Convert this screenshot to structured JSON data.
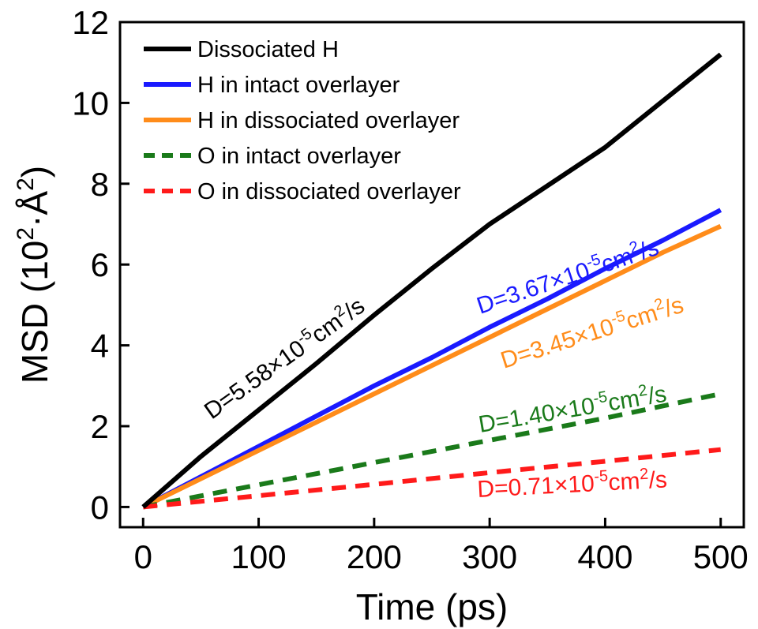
{
  "chart_data": {
    "type": "line",
    "xlabel": "Time (ps)",
    "ylabel": {
      "text": "MSD (10",
      "sup1": "2",
      "mid": "·Å",
      "sup2": "2",
      "end": ")"
    },
    "xlim": [
      -20,
      520
    ],
    "ylim": [
      -0.5,
      12
    ],
    "xticks": [
      0,
      100,
      200,
      300,
      400,
      500
    ],
    "yticks": [
      0,
      2,
      4,
      6,
      8,
      10,
      12
    ],
    "xtick_labels": [
      "0",
      "100",
      "200",
      "300",
      "400",
      "500"
    ],
    "ytick_labels": [
      "0",
      "2",
      "4",
      "6",
      "8",
      "10",
      "12"
    ],
    "grid": false,
    "legend_position": "top-left",
    "series": [
      {
        "name": "Dissociated H",
        "color": "#000000",
        "style": "solid",
        "x": [
          0,
          50,
          100,
          150,
          200,
          250,
          300,
          350,
          400,
          450,
          500
        ],
        "y": [
          0,
          1.25,
          2.4,
          3.55,
          4.75,
          5.9,
          7.0,
          7.95,
          8.9,
          10.05,
          11.2
        ]
      },
      {
        "name": "H in intact overlayer",
        "color": "#1a1aff",
        "style": "solid",
        "x": [
          0,
          50,
          100,
          150,
          200,
          250,
          300,
          350,
          400,
          450,
          500
        ],
        "y": [
          0,
          0.75,
          1.5,
          2.25,
          3.0,
          3.7,
          4.45,
          5.15,
          5.9,
          6.6,
          7.35
        ]
      },
      {
        "name": "H in dissociated overlayer",
        "color": "#ff8c1a",
        "style": "solid",
        "x": [
          0,
          50,
          100,
          150,
          200,
          250,
          300,
          350,
          400,
          450,
          500
        ],
        "y": [
          0,
          0.7,
          1.4,
          2.1,
          2.8,
          3.5,
          4.2,
          4.9,
          5.6,
          6.3,
          6.95
        ]
      },
      {
        "name": "O in intact overlayer",
        "color": "#1a7a1a",
        "style": "dashed",
        "x": [
          0,
          100,
          200,
          300,
          400,
          500
        ],
        "y": [
          0,
          0.55,
          1.1,
          1.65,
          2.2,
          2.8
        ]
      },
      {
        "name": "O in dissociated overlayer",
        "color": "#ff1a1a",
        "style": "dashed",
        "x": [
          0,
          100,
          200,
          300,
          400,
          500
        ],
        "y": [
          0,
          0.28,
          0.56,
          0.85,
          1.13,
          1.42
        ]
      }
    ],
    "annotations": [
      {
        "name": "annotation-dissociated-h",
        "color": "#000000",
        "prefix": "D=5.58×10",
        "sup1": "-5",
        "mid": "cm",
        "sup2": "2",
        "suffix": "/s"
      },
      {
        "name": "annotation-h-intact",
        "color": "#1a1aff",
        "prefix": "D=3.67×10",
        "sup1": "-5",
        "mid": "cm",
        "sup2": "2",
        "suffix": "/s"
      },
      {
        "name": "annotation-h-dissociated",
        "color": "#ff8c1a",
        "prefix": "D=3.45×10",
        "sup1": "-5",
        "mid": "cm",
        "sup2": "2",
        "suffix": "/s"
      },
      {
        "name": "annotation-o-intact",
        "color": "#1a7a1a",
        "prefix": "D=1.40×10",
        "sup1": "-5",
        "mid": "cm",
        "sup2": "2",
        "suffix": "/s"
      },
      {
        "name": "annotation-o-dissociated",
        "color": "#ff1a1a",
        "prefix": "D=0.71×10",
        "sup1": "-5",
        "mid": "cm",
        "sup2": "2",
        "suffix": "/s"
      }
    ]
  }
}
